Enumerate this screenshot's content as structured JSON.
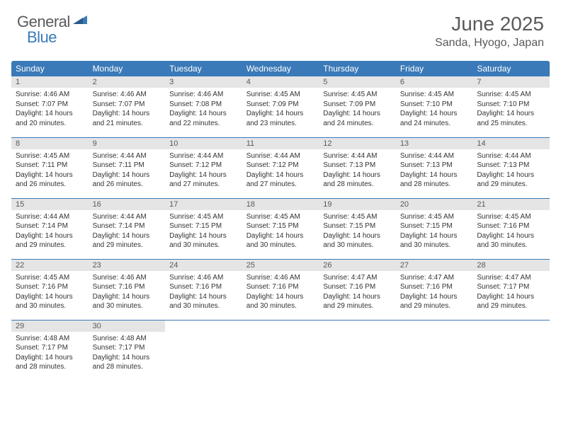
{
  "logo": {
    "text1": "General",
    "text2": "Blue"
  },
  "title": "June 2025",
  "location": "Sanda, Hyogo, Japan",
  "colors": {
    "header_bg": "#3b7ab8",
    "header_text": "#ffffff",
    "daynum_bg": "#e5e5e5",
    "text_gray": "#5a5a5a",
    "body_text": "#333333",
    "row_border": "#3b7ab8",
    "page_bg": "#ffffff"
  },
  "typography": {
    "title_fontsize": 28,
    "location_fontsize": 16,
    "weekday_fontsize": 12,
    "daynum_fontsize": 11,
    "body_fontsize": 10
  },
  "weekdays": [
    "Sunday",
    "Monday",
    "Tuesday",
    "Wednesday",
    "Thursday",
    "Friday",
    "Saturday"
  ],
  "days": [
    {
      "n": "1",
      "sunrise": "4:46 AM",
      "sunset": "7:07 PM",
      "day_h": "14",
      "day_m": "20"
    },
    {
      "n": "2",
      "sunrise": "4:46 AM",
      "sunset": "7:07 PM",
      "day_h": "14",
      "day_m": "21"
    },
    {
      "n": "3",
      "sunrise": "4:46 AM",
      "sunset": "7:08 PM",
      "day_h": "14",
      "day_m": "22"
    },
    {
      "n": "4",
      "sunrise": "4:45 AM",
      "sunset": "7:09 PM",
      "day_h": "14",
      "day_m": "23"
    },
    {
      "n": "5",
      "sunrise": "4:45 AM",
      "sunset": "7:09 PM",
      "day_h": "14",
      "day_m": "24"
    },
    {
      "n": "6",
      "sunrise": "4:45 AM",
      "sunset": "7:10 PM",
      "day_h": "14",
      "day_m": "24"
    },
    {
      "n": "7",
      "sunrise": "4:45 AM",
      "sunset": "7:10 PM",
      "day_h": "14",
      "day_m": "25"
    },
    {
      "n": "8",
      "sunrise": "4:45 AM",
      "sunset": "7:11 PM",
      "day_h": "14",
      "day_m": "26"
    },
    {
      "n": "9",
      "sunrise": "4:44 AM",
      "sunset": "7:11 PM",
      "day_h": "14",
      "day_m": "26"
    },
    {
      "n": "10",
      "sunrise": "4:44 AM",
      "sunset": "7:12 PM",
      "day_h": "14",
      "day_m": "27"
    },
    {
      "n": "11",
      "sunrise": "4:44 AM",
      "sunset": "7:12 PM",
      "day_h": "14",
      "day_m": "27"
    },
    {
      "n": "12",
      "sunrise": "4:44 AM",
      "sunset": "7:13 PM",
      "day_h": "14",
      "day_m": "28"
    },
    {
      "n": "13",
      "sunrise": "4:44 AM",
      "sunset": "7:13 PM",
      "day_h": "14",
      "day_m": "28"
    },
    {
      "n": "14",
      "sunrise": "4:44 AM",
      "sunset": "7:13 PM",
      "day_h": "14",
      "day_m": "29"
    },
    {
      "n": "15",
      "sunrise": "4:44 AM",
      "sunset": "7:14 PM",
      "day_h": "14",
      "day_m": "29"
    },
    {
      "n": "16",
      "sunrise": "4:44 AM",
      "sunset": "7:14 PM",
      "day_h": "14",
      "day_m": "29"
    },
    {
      "n": "17",
      "sunrise": "4:45 AM",
      "sunset": "7:15 PM",
      "day_h": "14",
      "day_m": "30"
    },
    {
      "n": "18",
      "sunrise": "4:45 AM",
      "sunset": "7:15 PM",
      "day_h": "14",
      "day_m": "30"
    },
    {
      "n": "19",
      "sunrise": "4:45 AM",
      "sunset": "7:15 PM",
      "day_h": "14",
      "day_m": "30"
    },
    {
      "n": "20",
      "sunrise": "4:45 AM",
      "sunset": "7:15 PM",
      "day_h": "14",
      "day_m": "30"
    },
    {
      "n": "21",
      "sunrise": "4:45 AM",
      "sunset": "7:16 PM",
      "day_h": "14",
      "day_m": "30"
    },
    {
      "n": "22",
      "sunrise": "4:45 AM",
      "sunset": "7:16 PM",
      "day_h": "14",
      "day_m": "30"
    },
    {
      "n": "23",
      "sunrise": "4:46 AM",
      "sunset": "7:16 PM",
      "day_h": "14",
      "day_m": "30"
    },
    {
      "n": "24",
      "sunrise": "4:46 AM",
      "sunset": "7:16 PM",
      "day_h": "14",
      "day_m": "30"
    },
    {
      "n": "25",
      "sunrise": "4:46 AM",
      "sunset": "7:16 PM",
      "day_h": "14",
      "day_m": "30"
    },
    {
      "n": "26",
      "sunrise": "4:47 AM",
      "sunset": "7:16 PM",
      "day_h": "14",
      "day_m": "29"
    },
    {
      "n": "27",
      "sunrise": "4:47 AM",
      "sunset": "7:16 PM",
      "day_h": "14",
      "day_m": "29"
    },
    {
      "n": "28",
      "sunrise": "4:47 AM",
      "sunset": "7:17 PM",
      "day_h": "14",
      "day_m": "29"
    },
    {
      "n": "29",
      "sunrise": "4:48 AM",
      "sunset": "7:17 PM",
      "day_h": "14",
      "day_m": "28"
    },
    {
      "n": "30",
      "sunrise": "4:48 AM",
      "sunset": "7:17 PM",
      "day_h": "14",
      "day_m": "28"
    }
  ],
  "labels": {
    "sunrise": "Sunrise:",
    "sunset": "Sunset:",
    "daylight": "Daylight:",
    "hours": "hours",
    "and": "and",
    "minutes": "minutes."
  }
}
